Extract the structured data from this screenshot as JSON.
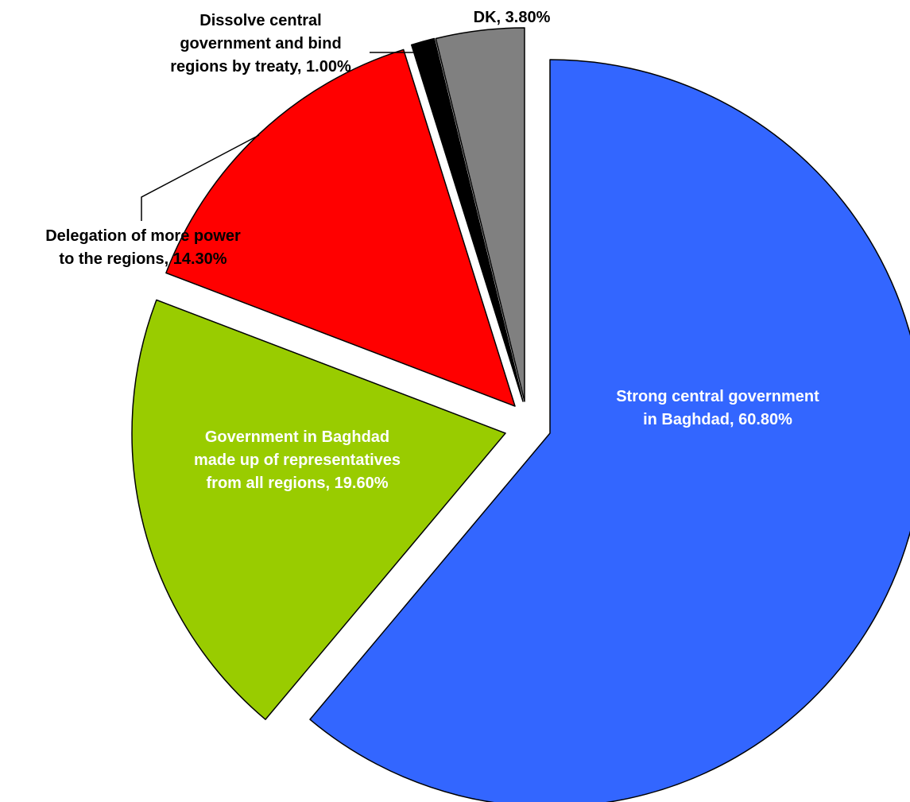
{
  "chart_data": {
    "type": "pie",
    "title": "",
    "start_angle_deg": 0,
    "direction": "clockwise",
    "exploded": true,
    "legend": "none",
    "slices": [
      {
        "label_lines": [
          "Strong central government",
          "in Baghdad, 60.80%"
        ],
        "category": "Strong central government in Baghdad",
        "value": 60.8,
        "color": "#3366FF",
        "label_color": "#FFFFFF"
      },
      {
        "label_lines": [
          "Government in Baghdad",
          "made up of representatives",
          "from all regions, 19.60%"
        ],
        "category": "Government in Baghdad made up of representatives from all regions",
        "value": 19.6,
        "color": "#99CC00",
        "label_color": "#FFFFFF"
      },
      {
        "label_lines": [
          "Delegation of more power",
          "to the regions, 14.30%"
        ],
        "category": "Delegation of more power to the regions",
        "value": 14.3,
        "color": "#FF0000",
        "label_color": "#000000"
      },
      {
        "label_lines": [
          "Dissolve central",
          "government and bind",
          "regions by treaty, 1.00%"
        ],
        "category": "Dissolve central government and bind regions by treaty",
        "value": 1.0,
        "color": "#000000",
        "label_color": "#000000"
      },
      {
        "label_lines": [
          "DK, 3.80%"
        ],
        "category": "DK",
        "value": 3.8,
        "color": "#808080",
        "label_color": "#000000"
      }
    ]
  }
}
